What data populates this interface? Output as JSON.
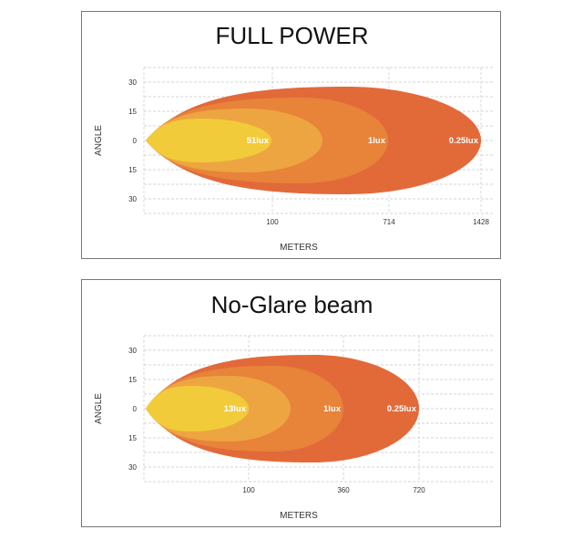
{
  "chart_data": [
    {
      "type": "area",
      "title": "FULL POWER",
      "xlabel": "METERS",
      "ylabel": "ANGLE",
      "y_ticks": [
        "30",
        "15",
        "0",
        "15",
        "30"
      ],
      "x_ticks": [
        "100",
        "714",
        "1428"
      ],
      "contours": [
        {
          "label": "0.25lux",
          "reach_m": 1428,
          "half_angle_deg": 28,
          "color": "#e0622e"
        },
        {
          "label": "1lux",
          "reach_m": 714,
          "half_angle_deg": 22,
          "color": "#e8853a"
        },
        {
          "label": "",
          "reach_m": 300,
          "half_angle_deg": 16,
          "color": "#eda642"
        },
        {
          "label": "51lux",
          "reach_m": 100,
          "half_angle_deg": 11,
          "color": "#f2cc3a"
        }
      ]
    },
    {
      "type": "area",
      "title": "No-Glare beam",
      "xlabel": "METERS",
      "ylabel": "ANGLE",
      "y_ticks": [
        "30",
        "15",
        "0",
        "15",
        "30"
      ],
      "x_ticks": [
        "100",
        "360",
        "720"
      ],
      "contours": [
        {
          "label": "0.25lux",
          "reach_m": 720,
          "half_angle_deg": 28,
          "color": "#e0622e"
        },
        {
          "label": "1lux",
          "reach_m": 360,
          "half_angle_deg": 22,
          "color": "#e8853a"
        },
        {
          "label": "",
          "reach_m": 200,
          "half_angle_deg": 17,
          "color": "#eda642"
        },
        {
          "label": "13lux",
          "reach_m": 100,
          "half_angle_deg": 12,
          "color": "#f2cc3a"
        }
      ]
    }
  ]
}
